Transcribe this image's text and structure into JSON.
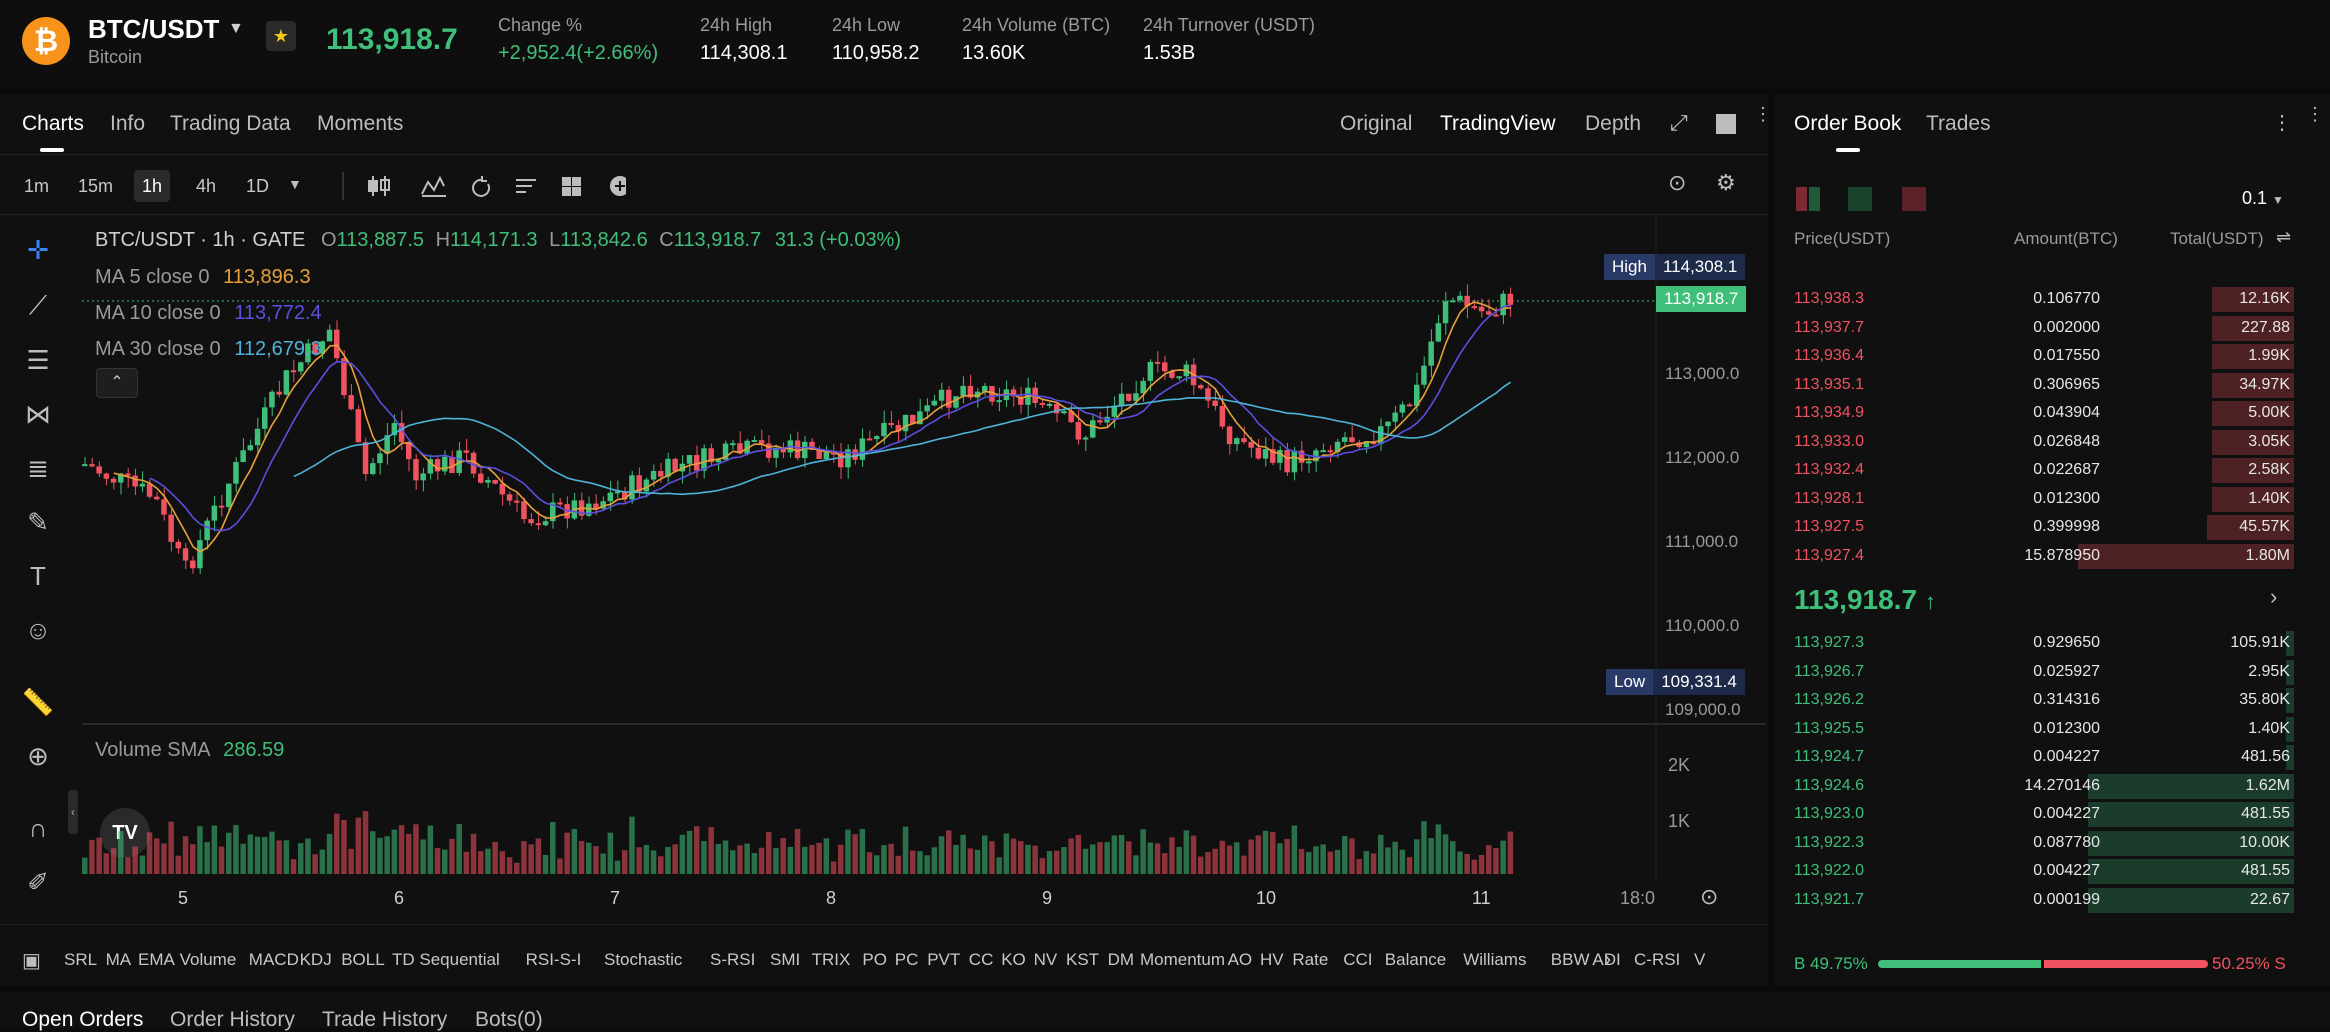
{
  "header": {
    "logo_glyph": "₿",
    "pair": "BTC/USDT",
    "subtitle": "Bitcoin",
    "last_price": "113,918.7",
    "change_label": "Change %",
    "change_value": "+2,952.4(+2.66%)",
    "high_label": "24h High",
    "high_value": "114,308.1",
    "low_label": "24h Low",
    "low_value": "110,958.2",
    "volume_label": "24h Volume (BTC)",
    "volume_value": "13.60K",
    "turnover_label": "24h Turnover (USDT)",
    "turnover_value": "1.53B"
  },
  "chart_tabs": {
    "charts": "Charts",
    "info": "Info",
    "trading_data": "Trading Data",
    "moments": "Moments",
    "original": "Original",
    "tradingview": "TradingView",
    "depth": "Depth"
  },
  "timeframes": [
    "1m",
    "15m",
    "1h",
    "4h",
    "1D"
  ],
  "legend": {
    "symbol": "BTC/USDT · 1h · GATE",
    "o_label": "O",
    "o": "113,887.5",
    "h_label": "H",
    "h": "114,171.3",
    "l_label": "L",
    "l": "113,842.6",
    "c_label": "C",
    "c": "113,918.7",
    "chg": "31.3 (+0.03%)",
    "ma5_label": "MA 5 close 0",
    "ma5": "113,896.3",
    "ma10_label": "MA 10 close 0",
    "ma10": "113,772.4",
    "ma30_label": "MA 30 close 0",
    "ma30": "112,679.3",
    "volume_label": "Volume SMA",
    "volume": "286.59"
  },
  "price_axis": [
    "113,000.0",
    "112,000.0",
    "111,000.0",
    "110,000.0",
    "109,000.0"
  ],
  "high_tag": {
    "label": "High",
    "value": "114,308.1"
  },
  "low_tag": {
    "label": "Low",
    "value": "109,331.4"
  },
  "current_tag": "113,918.7",
  "volume_axis": [
    "2K",
    "1K"
  ],
  "date_axis": [
    "5",
    "6",
    "7",
    "8",
    "9",
    "10",
    "11",
    "18:0"
  ],
  "indicators": [
    "SRL",
    "MA",
    "EMA",
    "Volume",
    "MACD",
    "KDJ",
    "BOLL",
    "TD Sequential",
    "RSI-S-I",
    "Stochastic",
    "S-RSI",
    "SMI",
    "TRIX",
    "PO",
    "PC",
    "PVT",
    "CC",
    "KO",
    "NV",
    "KST",
    "DM",
    "Momentum",
    "AO",
    "HV",
    "Rate",
    "CCI",
    "Balance",
    "Williams",
    "BBW",
    "ADI",
    "C-RSI",
    "V"
  ],
  "tv_logo": "TV",
  "orderbook": {
    "tab_book": "Order Book",
    "tab_trades": "Trades",
    "precision": "0.1",
    "col_price": "Price(USDT)",
    "col_amount": "Amount(BTC)",
    "col_total": "Total(USDT)",
    "asks": [
      {
        "price": "113,938.3",
        "amount": "0.106770",
        "total": "12.16K",
        "depth": 0.16
      },
      {
        "price": "113,937.7",
        "amount": "0.002000",
        "total": "227.88",
        "depth": 0.16
      },
      {
        "price": "113,936.4",
        "amount": "0.017550",
        "total": "1.99K",
        "depth": 0.16
      },
      {
        "price": "113,935.1",
        "amount": "0.306965",
        "total": "34.97K",
        "depth": 0.16
      },
      {
        "price": "113,934.9",
        "amount": "0.043904",
        "total": "5.00K",
        "depth": 0.16
      },
      {
        "price": "113,933.0",
        "amount": "0.026848",
        "total": "3.05K",
        "depth": 0.16
      },
      {
        "price": "113,932.4",
        "amount": "0.022687",
        "total": "2.58K",
        "depth": 0.16
      },
      {
        "price": "113,928.1",
        "amount": "0.012300",
        "total": "1.40K",
        "depth": 0.16
      },
      {
        "price": "113,927.5",
        "amount": "0.399998",
        "total": "45.57K",
        "depth": 0.17
      },
      {
        "price": "113,927.4",
        "amount": "15.878950",
        "total": "1.80M",
        "depth": 0.42
      }
    ],
    "mid_price": "113,918.7",
    "bids": [
      {
        "price": "113,927.3",
        "amount": "0.929650",
        "total": "105.91K",
        "depth": 0.016
      },
      {
        "price": "113,926.7",
        "amount": "0.025927",
        "total": "2.95K",
        "depth": 0.016
      },
      {
        "price": "113,926.2",
        "amount": "0.314316",
        "total": "35.80K",
        "depth": 0.016
      },
      {
        "price": "113,925.5",
        "amount": "0.012300",
        "total": "1.40K",
        "depth": 0.016
      },
      {
        "price": "113,924.7",
        "amount": "0.004227",
        "total": "481.56",
        "depth": 0.016
      },
      {
        "price": "113,924.6",
        "amount": "14.270146",
        "total": "1.62M",
        "depth": 0.4
      },
      {
        "price": "113,923.0",
        "amount": "0.004227",
        "total": "481.55",
        "depth": 0.4
      },
      {
        "price": "113,922.3",
        "amount": "0.087780",
        "total": "10.00K",
        "depth": 0.4
      },
      {
        "price": "113,922.0",
        "amount": "0.004227",
        "total": "481.55",
        "depth": 0.4
      },
      {
        "price": "113,921.7",
        "amount": "0.000199",
        "total": "22.67",
        "depth": 0.4
      }
    ],
    "buy_pct_label": "B 49.75%",
    "sell_pct_label": "50.25% S",
    "buy_ratio": 0.4975
  },
  "bottom_tabs": {
    "open_orders": "Open Orders",
    "order_history": "Order History",
    "trade_history": "Trade History",
    "bots": "Bots(0)"
  },
  "colors": {
    "up": "#3fbf7a",
    "down": "#f0525f",
    "ma5": "#e8a13a",
    "ma10": "#5b4fe0",
    "ma30": "#4fb3d9",
    "accent": "#f7931a"
  }
}
